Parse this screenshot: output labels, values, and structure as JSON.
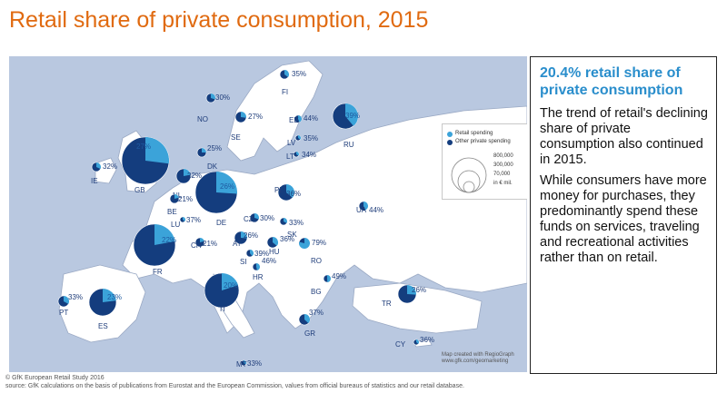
{
  "title": "Retail share of private consumption, 2015",
  "legend": {
    "retail_label": "Retail spending",
    "other_label": "Other private spending",
    "sizes": [
      "800,000",
      "300,000",
      "70,000"
    ],
    "unit": "in € mil.",
    "colors": {
      "retail": "#3ba3d9",
      "other": "#143d7e"
    }
  },
  "credit": [
    "Map created with RegioGraph",
    "www.gfk.com/geomarketing"
  ],
  "panel": {
    "headline": "20.4% retail share of private consumption",
    "paragraph_1": "The trend of retail's declining share of private consumption also continued in 2015.",
    "paragraph_2": "While consumers have more money for purchases, they predominantly spend these funds on services, traveling and recreational activities rather than on retail."
  },
  "footer": {
    "copyright": "© GfK European Retail Study 2016",
    "source": "source: GfK calculations on the basis of publications from Eurostat and the European Commission, values from official bureaus of statistics and our retail database."
  },
  "countries": [
    {
      "code": "FI",
      "share": "35%",
      "value": 35
    },
    {
      "code": "NO",
      "share": "30%",
      "value": 30
    },
    {
      "code": "SE",
      "share": "27%",
      "value": 27
    },
    {
      "code": "EE",
      "share": "44%",
      "value": 44
    },
    {
      "code": "LV",
      "share": "35%",
      "value": 35
    },
    {
      "code": "LT",
      "share": "34%",
      "value": 34
    },
    {
      "code": "RU",
      "share": "39%",
      "value": 39
    },
    {
      "code": "DK",
      "share": "25%",
      "value": 25
    },
    {
      "code": "IE",
      "share": "32%",
      "value": 32
    },
    {
      "code": "GB",
      "share": "27%",
      "value": 27
    },
    {
      "code": "NL",
      "share": "22%",
      "value": 22
    },
    {
      "code": "BE",
      "share": "21%",
      "value": 21
    },
    {
      "code": "LU",
      "share": "37%",
      "value": 37
    },
    {
      "code": "DE",
      "share": "26%",
      "value": 26
    },
    {
      "code": "PL",
      "share": "36%",
      "value": 36
    },
    {
      "code": "CZ",
      "share": "30%",
      "value": 30
    },
    {
      "code": "SK",
      "share": "33%",
      "value": 33
    },
    {
      "code": "AT",
      "share": "26%",
      "value": 26
    },
    {
      "code": "CH",
      "share": "21%",
      "value": 21
    },
    {
      "code": "HU",
      "share": "36%",
      "value": 36
    },
    {
      "code": "SI",
      "share": "39%",
      "value": 39
    },
    {
      "code": "HR",
      "share": "46%",
      "value": 46
    },
    {
      "code": "UA",
      "share": "44%",
      "value": 44
    },
    {
      "code": "RO",
      "share": "79%",
      "value": 79
    },
    {
      "code": "BG",
      "share": "49%",
      "value": 49
    },
    {
      "code": "FR",
      "share": "22%",
      "value": 22
    },
    {
      "code": "IT",
      "share": "20%",
      "value": 20
    },
    {
      "code": "ES",
      "share": "23%",
      "value": 23
    },
    {
      "code": "PT",
      "share": "33%",
      "value": 33
    },
    {
      "code": "GR",
      "share": "37%",
      "value": 37
    },
    {
      "code": "TR",
      "share": "26%",
      "value": 26
    },
    {
      "code": "CY",
      "share": "36%",
      "value": 36
    },
    {
      "code": "MT",
      "share": "33%",
      "value": 33
    }
  ]
}
